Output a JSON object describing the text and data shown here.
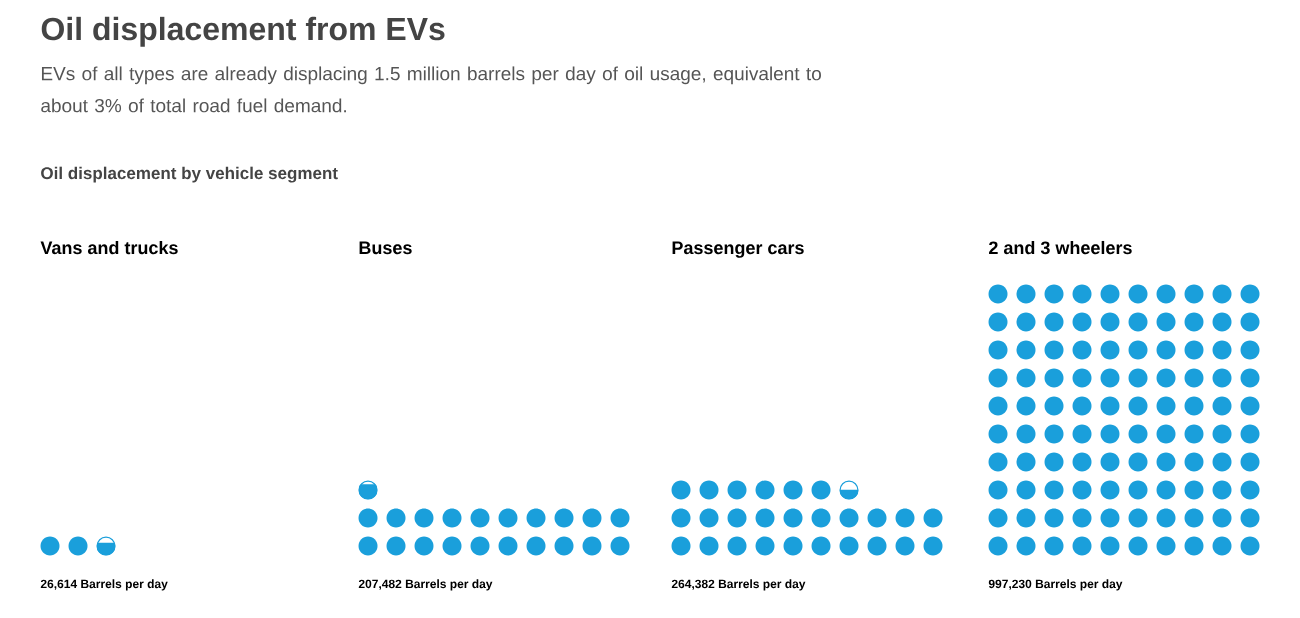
{
  "chart_data": {
    "type": "other",
    "title": "Oil displacement from EVs",
    "subtitle": "EVs of all types are already displacing 1.5 million barrels per day of oil usage, equivalent to about 3% of total road fuel demand.",
    "annotations": [
      "Oil displacement by vehicle segment"
    ],
    "categories": [
      "Vans and trucks",
      "Buses",
      "Passenger cars",
      "2 and 3 wheelers"
    ],
    "values": [
      26614,
      207482,
      264382,
      997230
    ],
    "value_labels": [
      "26,614 Barrels per day",
      "207,482 Barrels per day",
      "264,382 Barrels per day",
      "997,230 Barrels per day"
    ],
    "color": "#1a9fdb"
  }
}
